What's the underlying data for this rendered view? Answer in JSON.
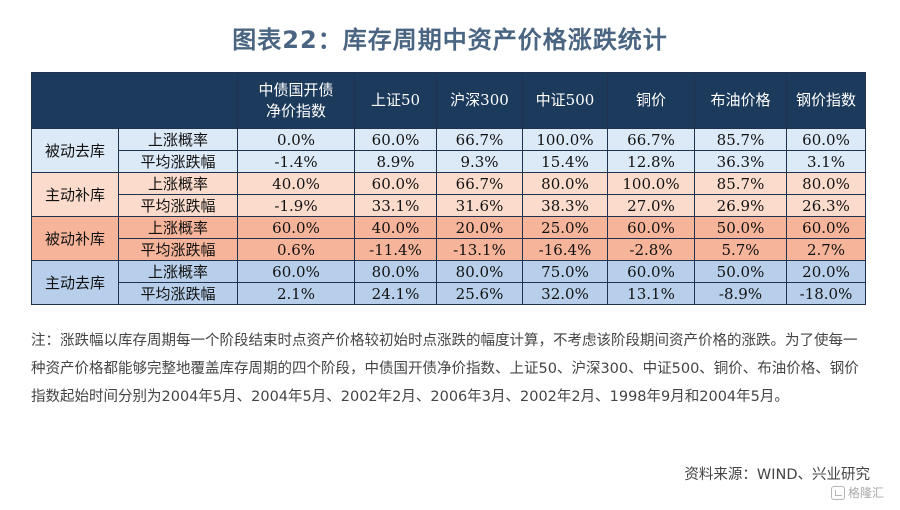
{
  "title": "图表22：库存周期中资产价格涨跌统计",
  "table": {
    "columns": [
      "中债国开债\n净价指数",
      "上证50",
      "沪深300",
      "中证500",
      "铜价",
      "布油价格",
      "钢价指数"
    ],
    "phases": [
      {
        "name": "被动去库",
        "bg": "#dce9f7",
        "rows": [
          {
            "label": "上涨概率",
            "values": [
              "0.0%",
              "60.0%",
              "66.7%",
              "100.0%",
              "66.7%",
              "85.7%",
              "60.0%"
            ]
          },
          {
            "label": "平均涨跌幅",
            "values": [
              "-1.4%",
              "8.9%",
              "9.3%",
              "15.4%",
              "12.8%",
              "36.3%",
              "3.1%"
            ]
          }
        ]
      },
      {
        "name": "主动补库",
        "bg": "#fbdccc",
        "rows": [
          {
            "label": "上涨概率",
            "values": [
              "40.0%",
              "60.0%",
              "66.7%",
              "80.0%",
              "100.0%",
              "85.7%",
              "80.0%"
            ]
          },
          {
            "label": "平均涨跌幅",
            "values": [
              "-1.9%",
              "33.1%",
              "31.6%",
              "38.3%",
              "27.0%",
              "26.9%",
              "26.3%"
            ]
          }
        ]
      },
      {
        "name": "被动补库",
        "bg": "#f6b59a",
        "rows": [
          {
            "label": "上涨概率",
            "values": [
              "60.0%",
              "40.0%",
              "20.0%",
              "25.0%",
              "60.0%",
              "50.0%",
              "60.0%"
            ]
          },
          {
            "label": "平均涨跌幅",
            "values": [
              "0.6%",
              "-11.4%",
              "-13.1%",
              "-16.4%",
              "-2.8%",
              "5.7%",
              "2.7%"
            ]
          }
        ]
      },
      {
        "name": "主动去库",
        "bg": "#b7cfea",
        "rows": [
          {
            "label": "上涨概率",
            "values": [
              "60.0%",
              "80.0%",
              "80.0%",
              "75.0%",
              "60.0%",
              "50.0%",
              "20.0%"
            ]
          },
          {
            "label": "平均涨跌幅",
            "values": [
              "2.1%",
              "24.1%",
              "25.6%",
              "32.0%",
              "13.1%",
              "-8.9%",
              "-18.0%"
            ]
          }
        ]
      }
    ]
  },
  "note": "注：涨跌幅以库存周期每一个阶段结束时点资产价格较初始时点涨跌的幅度计算，不考虑该阶段期间资产价格的涨跌。为了使每一种资产价格都能够完整地覆盖库存周期的四个阶段，中债国开债净价指数、上证50、沪深300、中证500、铜价、布油价格、钢价指数起始时间分别为2004年5月、2004年5月、2002年2月、2006年3月、2002年2月、1998年9月和2004年5月。",
  "source": "资料来源：WIND、兴业研究",
  "watermark": "格隆汇"
}
